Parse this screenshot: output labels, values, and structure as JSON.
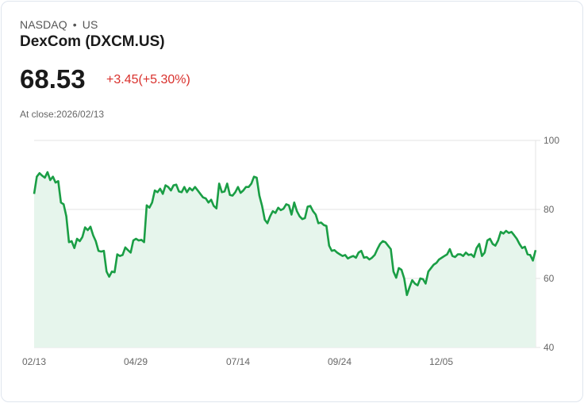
{
  "header": {
    "exchange": "NASDAQ",
    "separator": "•",
    "region": "US",
    "title": "DexCom (DXCM.US)",
    "price": "68.53",
    "change": "+3.45(+5.30%)",
    "close_label": "At close:2026/02/13"
  },
  "colors": {
    "line": "#1a9e45",
    "fill": "#e6f5ec",
    "change_negative_red": "#d9302c",
    "grid": "#e3e3e3"
  },
  "chart_data": {
    "type": "area",
    "title": "DexCom (DXCM.US)",
    "xlabel": "",
    "ylabel": "",
    "ylim": [
      40,
      100
    ],
    "yticks": [
      "100",
      "80",
      "60",
      "40"
    ],
    "xticks": [
      "02/13",
      "04/29",
      "07/14",
      "09/24",
      "12/05"
    ],
    "grid": true,
    "y_axis_position": "right",
    "series": [
      {
        "name": "DXCM.US",
        "values": [
          84.5,
          89.5,
          90.5,
          89.8,
          89.2,
          90.8,
          88.5,
          89.5,
          87.8,
          88.2,
          82,
          81.5,
          78,
          70.5,
          70.8,
          68.8,
          71.5,
          70.8,
          72,
          74.8,
          74,
          75,
          72.5,
          70.8,
          68,
          67.8,
          68,
          62,
          60.5,
          62,
          61.8,
          67,
          66.5,
          66.8,
          69,
          68.2,
          67.5,
          71,
          71.5,
          71,
          71.2,
          70.5,
          81.2,
          80.5,
          82,
          85.5,
          85,
          86,
          84.5,
          87,
          86.5,
          85.5,
          87,
          87.2,
          85.2,
          85,
          86.5,
          85,
          86.2,
          85.5,
          86.5,
          85.5,
          84.5,
          83.5,
          83.2,
          82,
          82.8,
          81,
          80.3,
          87.5,
          85,
          85.2,
          87.5,
          84.2,
          84,
          85,
          86.5,
          84.8,
          85.5,
          86.5,
          86.5,
          87.5,
          89.5,
          89.2,
          84,
          81,
          77,
          76,
          78,
          79.5,
          79,
          80.5,
          79.8,
          80.2,
          81.5,
          81.2,
          78.5,
          82,
          79.5,
          78,
          77.2,
          77.5,
          80.8,
          81,
          79.5,
          78.5,
          76,
          76.2,
          75.5,
          75.2,
          69.5,
          68,
          68.2,
          67.5,
          67,
          66.5,
          66.8,
          65.8,
          66.2,
          66.5,
          66,
          67.5,
          68,
          66,
          66.2,
          65.5,
          66,
          66.8,
          68.5,
          70,
          70.8,
          70.5,
          69.5,
          68.5,
          62,
          60.2,
          63,
          62.5,
          60,
          55.2,
          57.5,
          59.5,
          58.5,
          58,
          60,
          59.8,
          58.5,
          62,
          63,
          64,
          64.5,
          65.5,
          66,
          66.5,
          67,
          68.5,
          66.5,
          66.2,
          67,
          67,
          66.5,
          67.5,
          66.8,
          67,
          66.2,
          68.8,
          70,
          66.5,
          67.5,
          71,
          71.5,
          70,
          69.5,
          71,
          73.5,
          73,
          73.8,
          73.2,
          73.5,
          72.5,
          71.5,
          70,
          68.8,
          69.2,
          67,
          66.8,
          65.2,
          68.2
        ]
      }
    ]
  }
}
